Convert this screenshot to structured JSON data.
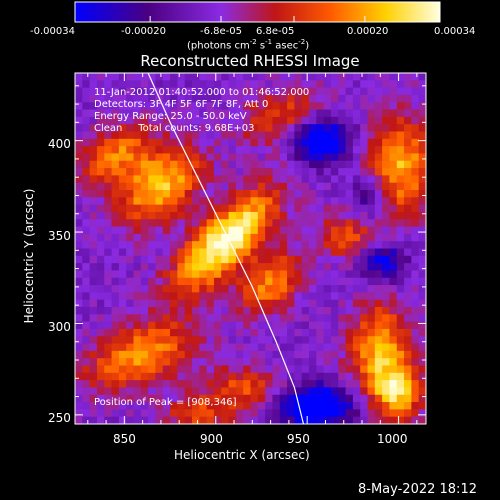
{
  "colorbar": {
    "ticks": [
      "-0.00034",
      "-0.00020",
      "-6.8e-05",
      "6.8e-05",
      "0.00020",
      "0.00034"
    ],
    "range": [
      -0.00034,
      0.00034
    ],
    "units_main": "(photons cm",
    "units_exp1": "-2",
    "units_mid": " s",
    "units_exp2": "-1",
    "units_end": " asec",
    "units_exp3": "-2",
    "units_close": ")"
  },
  "chart_data": {
    "type": "heatmap",
    "title": "Reconstructed RHESSI Image",
    "xlabel": "Heliocentric X (arcsec)",
    "ylabel": "Heliocentric Y (arcsec)",
    "xlim": [
      823,
      1015
    ],
    "ylim": [
      245,
      437
    ],
    "x_ticks": [
      "850",
      "900",
      "950",
      "1000"
    ],
    "y_ticks": [
      "250",
      "300",
      "350",
      "400"
    ],
    "colormap": [
      "#0000ff",
      "#4b0082",
      "#8a2be2",
      "#c01616",
      "#ff5a00",
      "#ffd000",
      "#ffffe0"
    ],
    "peak": [
      908,
      346
    ],
    "annotations": [
      "11-Jan-2012 01:40:52.000 to 01:46:52.000",
      "Detectors: 3F 4F 5F 6F 7F 8F, Att 0",
      "Energy Range: 25.0 - 50.0 keV",
      "Clean     Total counts: 9.68E+03"
    ],
    "peak_label": "Position of Peak = [908,346]",
    "blobs": [
      {
        "x": 905,
        "y": 345,
        "sx": 26,
        "sy": 10,
        "rot": -45,
        "a": 1.0
      },
      {
        "x": 870,
        "y": 375,
        "sx": 18,
        "sy": 12,
        "rot": -40,
        "a": 0.75
      },
      {
        "x": 845,
        "y": 392,
        "sx": 16,
        "sy": 10,
        "rot": -30,
        "a": 0.55
      },
      {
        "x": 930,
        "y": 322,
        "sx": 14,
        "sy": 10,
        "rot": -45,
        "a": 0.6
      },
      {
        "x": 1000,
        "y": 385,
        "sx": 14,
        "sy": 20,
        "rot": 0,
        "a": 0.7
      },
      {
        "x": 975,
        "y": 345,
        "sx": 14,
        "sy": 9,
        "rot": 20,
        "a": 0.5
      },
      {
        "x": 990,
        "y": 285,
        "sx": 12,
        "sy": 18,
        "rot": 0,
        "a": 0.7
      },
      {
        "x": 1000,
        "y": 262,
        "sx": 10,
        "sy": 10,
        "rot": 0,
        "a": 0.65
      },
      {
        "x": 858,
        "y": 282,
        "sx": 22,
        "sy": 11,
        "rot": -20,
        "a": 0.65
      },
      {
        "x": 915,
        "y": 265,
        "sx": 16,
        "sy": 8,
        "rot": 0,
        "a": 0.45
      },
      {
        "x": 935,
        "y": 413,
        "sx": 16,
        "sy": 10,
        "rot": -20,
        "a": 0.45
      },
      {
        "x": 890,
        "y": 250,
        "sx": 14,
        "sy": 7,
        "rot": 0,
        "a": 0.4
      }
    ],
    "lows": [
      {
        "x": 958,
        "y": 400,
        "sx": 12,
        "sy": 9,
        "a": 0.5
      },
      {
        "x": 990,
        "y": 335,
        "sx": 10,
        "sy": 8,
        "a": 0.45
      },
      {
        "x": 955,
        "y": 255,
        "sx": 14,
        "sy": 8,
        "a": 0.6
      },
      {
        "x": 985,
        "y": 370,
        "sx": 8,
        "sy": 10,
        "a": 0.3
      }
    ],
    "limb": [
      [
        863,
        437
      ],
      [
        875,
        410
      ],
      [
        890,
        380
      ],
      [
        905,
        350
      ],
      [
        920,
        320
      ],
      [
        933,
        290
      ],
      [
        943,
        265
      ],
      [
        948,
        245
      ]
    ]
  },
  "timestamp": "8-May-2022 18:12"
}
